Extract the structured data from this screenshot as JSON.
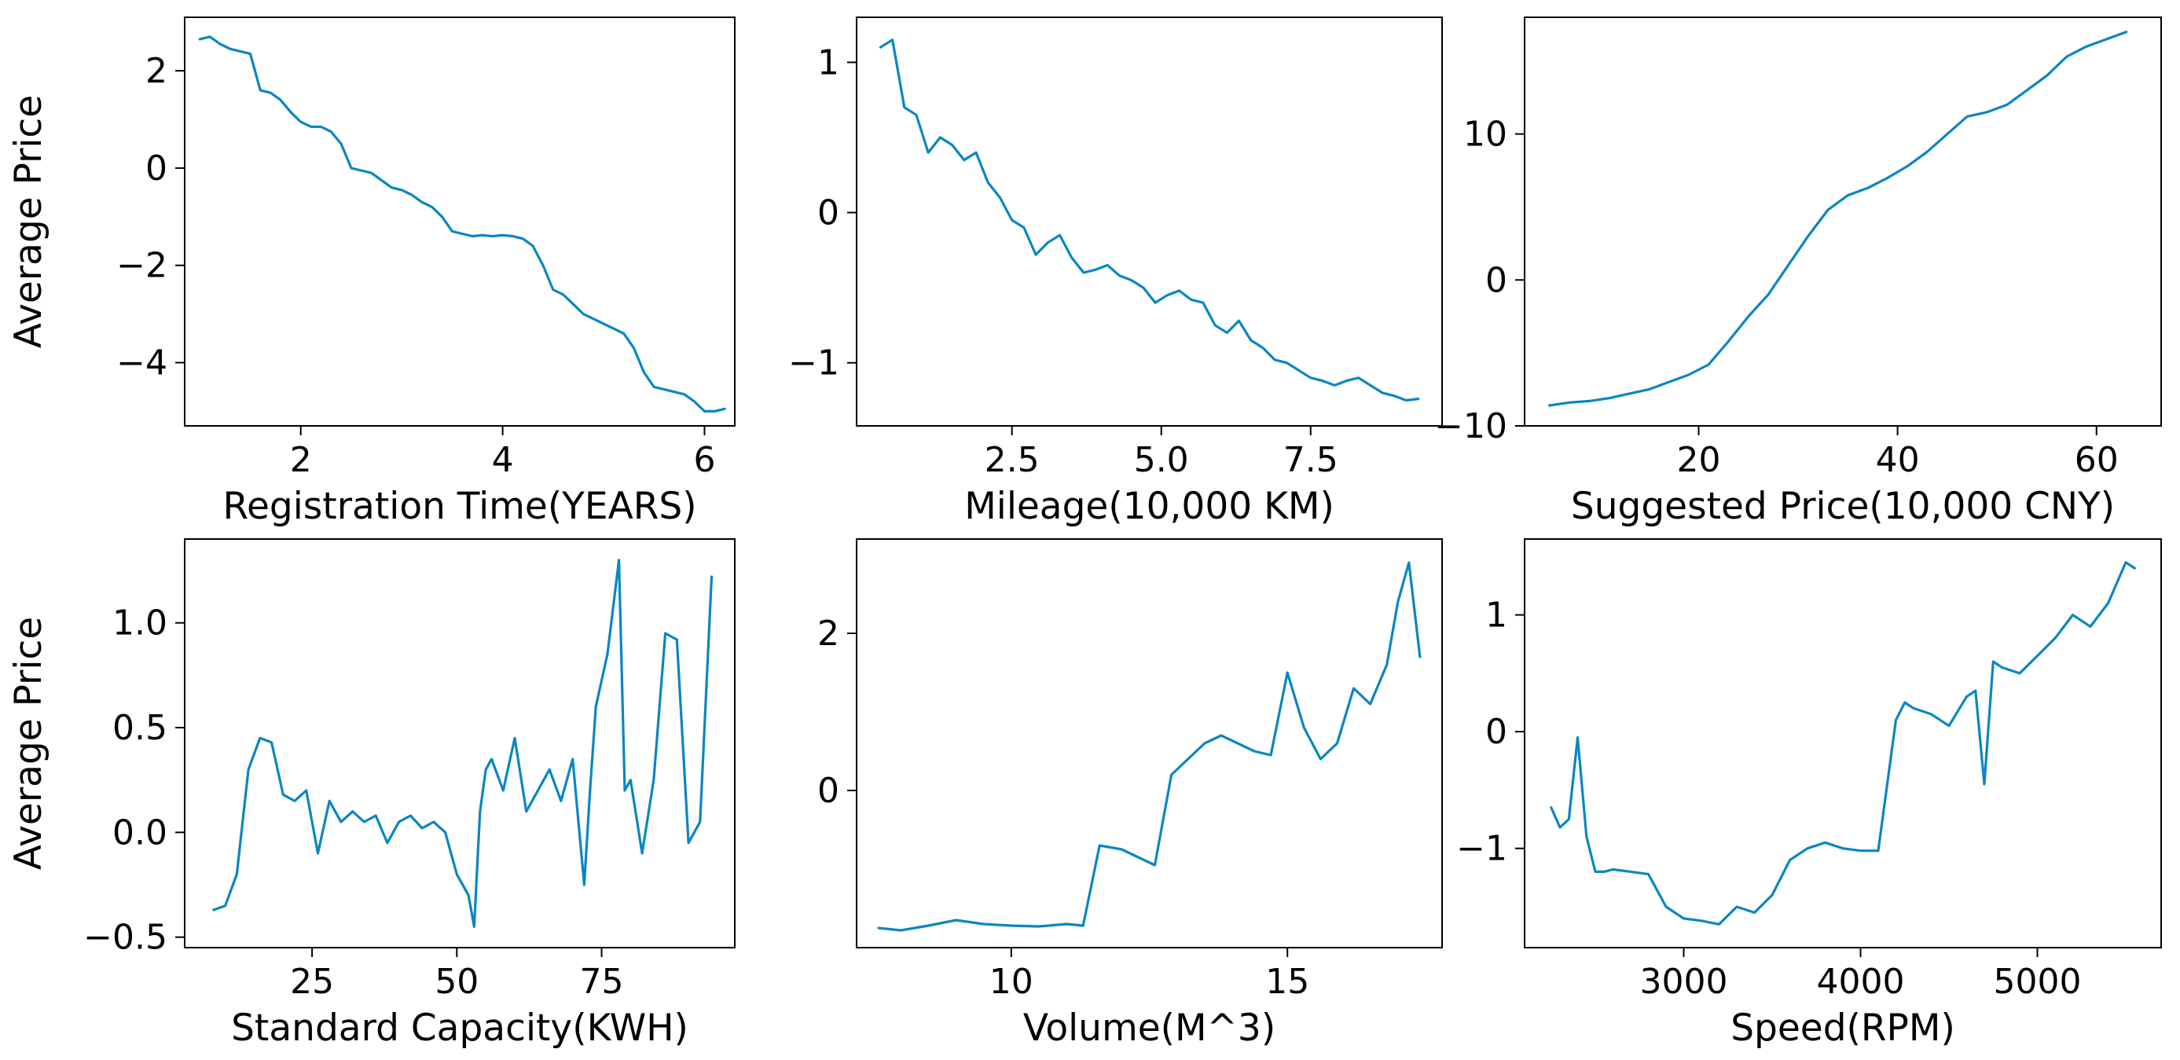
{
  "figure": {
    "line_color": "#0a86c2"
  },
  "chart_data": [
    {
      "type": "line",
      "xlabel": "Registration Time(YEARS)",
      "ylabel": "Average Price",
      "xlim": [
        0.85,
        6.3
      ],
      "ylim": [
        -5.3,
        3.1
      ],
      "xticks": [
        2,
        4,
        6
      ],
      "xtick_labels": [
        "2",
        "4",
        "6"
      ],
      "yticks": [
        2,
        0,
        -2,
        -4
      ],
      "ytick_labels": [
        "2",
        "0",
        "−2",
        "−4"
      ],
      "x": [
        1.0,
        1.1,
        1.2,
        1.3,
        1.4,
        1.5,
        1.6,
        1.7,
        1.8,
        1.9,
        2.0,
        2.1,
        2.2,
        2.3,
        2.4,
        2.5,
        2.6,
        2.7,
        2.8,
        2.9,
        3.0,
        3.1,
        3.2,
        3.3,
        3.4,
        3.5,
        3.6,
        3.7,
        3.8,
        3.9,
        4.0,
        4.1,
        4.2,
        4.3,
        4.4,
        4.5,
        4.6,
        4.7,
        4.8,
        4.9,
        5.0,
        5.1,
        5.2,
        5.3,
        5.4,
        5.5,
        5.6,
        5.7,
        5.8,
        5.9,
        6.0,
        6.1,
        6.2
      ],
      "y": [
        2.65,
        2.7,
        2.55,
        2.45,
        2.4,
        2.35,
        1.6,
        1.55,
        1.4,
        1.15,
        0.95,
        0.85,
        0.85,
        0.75,
        0.5,
        0.0,
        -0.05,
        -0.1,
        -0.25,
        -0.4,
        -0.45,
        -0.55,
        -0.7,
        -0.8,
        -1.0,
        -1.3,
        -1.35,
        -1.4,
        -1.38,
        -1.4,
        -1.38,
        -1.4,
        -1.45,
        -1.6,
        -2.0,
        -2.5,
        -2.6,
        -2.8,
        -3.0,
        -3.1,
        -3.2,
        -3.3,
        -3.4,
        -3.7,
        -4.2,
        -4.5,
        -4.55,
        -4.6,
        -4.65,
        -4.8,
        -5.0,
        -5.0,
        -4.95
      ]
    },
    {
      "type": "line",
      "xlabel": "Mileage(10,000 KM)",
      "ylabel": "",
      "xlim": [
        -0.1,
        9.7
      ],
      "ylim": [
        -1.42,
        1.3
      ],
      "xticks": [
        2.5,
        5.0,
        7.5
      ],
      "xtick_labels": [
        "2.5",
        "5.0",
        "7.5"
      ],
      "yticks": [
        1,
        0,
        -1
      ],
      "ytick_labels": [
        "1",
        "0",
        "−1"
      ],
      "x": [
        0.3,
        0.5,
        0.7,
        0.9,
        1.1,
        1.3,
        1.5,
        1.7,
        1.9,
        2.1,
        2.3,
        2.5,
        2.7,
        2.9,
        3.1,
        3.3,
        3.5,
        3.7,
        3.9,
        4.1,
        4.3,
        4.5,
        4.7,
        4.9,
        5.1,
        5.3,
        5.5,
        5.7,
        5.9,
        6.1,
        6.3,
        6.5,
        6.7,
        6.9,
        7.1,
        7.3,
        7.5,
        7.7,
        7.9,
        8.1,
        8.3,
        8.5,
        8.7,
        8.9,
        9.1,
        9.3
      ],
      "y": [
        1.1,
        1.15,
        0.7,
        0.65,
        0.4,
        0.5,
        0.45,
        0.35,
        0.4,
        0.2,
        0.1,
        -0.05,
        -0.1,
        -0.28,
        -0.2,
        -0.15,
        -0.3,
        -0.4,
        -0.38,
        -0.35,
        -0.42,
        -0.45,
        -0.5,
        -0.6,
        -0.55,
        -0.52,
        -0.58,
        -0.6,
        -0.75,
        -0.8,
        -0.72,
        -0.85,
        -0.9,
        -0.98,
        -1.0,
        -1.05,
        -1.1,
        -1.12,
        -1.15,
        -1.12,
        -1.1,
        -1.15,
        -1.2,
        -1.22,
        -1.25,
        -1.24
      ]
    },
    {
      "type": "line",
      "xlabel": "Suggested Price(10,000 CNY)",
      "ylabel": "",
      "xlim": [
        2.5,
        66.5
      ],
      "ylim": [
        -10,
        18
      ],
      "xticks": [
        20,
        40,
        60
      ],
      "xtick_labels": [
        "20",
        "40",
        "60"
      ],
      "yticks": [
        10,
        0,
        -10
      ],
      "ytick_labels": [
        "10",
        "0",
        "−10"
      ],
      "x": [
        5,
        7,
        9,
        11,
        13,
        15,
        17,
        19,
        21,
        23,
        25,
        27,
        29,
        31,
        33,
        35,
        37,
        39,
        41,
        43,
        45,
        47,
        49,
        51,
        53,
        55,
        57,
        59,
        61,
        63
      ],
      "y": [
        -8.6,
        -8.4,
        -8.3,
        -8.1,
        -7.8,
        -7.5,
        -7.0,
        -6.5,
        -5.8,
        -4.2,
        -2.5,
        -1.0,
        1.0,
        3.0,
        4.8,
        5.8,
        6.3,
        7.0,
        7.8,
        8.8,
        10.0,
        11.2,
        11.5,
        12.0,
        13.0,
        14.0,
        15.3,
        16.0,
        16.5,
        17.0
      ]
    },
    {
      "type": "line",
      "xlabel": "Standard Capacity(KWH)",
      "ylabel": "Average Price",
      "xlim": [
        3,
        98
      ],
      "ylim": [
        -0.55,
        1.4
      ],
      "xticks": [
        25,
        50,
        75
      ],
      "xtick_labels": [
        "25",
        "50",
        "75"
      ],
      "yticks": [
        1.0,
        0.5,
        0.0,
        -0.5
      ],
      "ytick_labels": [
        "1.0",
        "0.5",
        "0.0",
        "−0.5"
      ],
      "x": [
        8,
        10,
        12,
        14,
        16,
        18,
        20,
        22,
        24,
        26,
        28,
        30,
        32,
        34,
        36,
        38,
        40,
        42,
        44,
        46,
        48,
        50,
        52,
        53,
        54,
        55,
        56,
        58,
        60,
        62,
        64,
        66,
        68,
        70,
        72,
        73,
        74,
        76,
        78,
        79,
        80,
        82,
        84,
        86,
        88,
        90,
        92,
        94
      ],
      "y": [
        -0.37,
        -0.35,
        -0.2,
        0.3,
        0.45,
        0.43,
        0.18,
        0.15,
        0.2,
        -0.1,
        0.15,
        0.05,
        0.1,
        0.05,
        0.08,
        -0.05,
        0.05,
        0.08,
        0.02,
        0.05,
        0.0,
        -0.2,
        -0.3,
        -0.45,
        0.1,
        0.3,
        0.35,
        0.2,
        0.45,
        0.1,
        0.2,
        0.3,
        0.15,
        0.35,
        -0.25,
        0.2,
        0.6,
        0.85,
        1.3,
        0.2,
        0.25,
        -0.1,
        0.25,
        0.95,
        0.92,
        -0.05,
        0.05,
        1.22
      ]
    },
    {
      "type": "line",
      "xlabel": "Volume(M^3)",
      "ylabel": "",
      "xlim": [
        7.2,
        17.8
      ],
      "ylim": [
        -2.0,
        3.2
      ],
      "xticks": [
        10,
        15
      ],
      "xtick_labels": [
        "10",
        "15"
      ],
      "yticks": [
        2,
        0
      ],
      "ytick_labels": [
        "2",
        "0"
      ],
      "x": [
        7.6,
        8.0,
        8.5,
        9.0,
        9.5,
        10.0,
        10.5,
        11.0,
        11.3,
        11.6,
        12.0,
        12.3,
        12.6,
        12.9,
        13.2,
        13.5,
        13.8,
        14.1,
        14.4,
        14.7,
        15.0,
        15.3,
        15.6,
        15.9,
        16.2,
        16.5,
        16.8,
        17.0,
        17.2,
        17.4
      ],
      "y": [
        -1.75,
        -1.78,
        -1.72,
        -1.65,
        -1.7,
        -1.72,
        -1.73,
        -1.7,
        -1.72,
        -0.7,
        -0.75,
        -0.85,
        -0.95,
        0.2,
        0.4,
        0.6,
        0.7,
        0.6,
        0.5,
        0.45,
        1.5,
        0.8,
        0.4,
        0.6,
        1.3,
        1.1,
        1.6,
        2.4,
        2.9,
        1.7
      ]
    },
    {
      "type": "line",
      "xlabel": "Speed(RPM)",
      "ylabel": "",
      "xlim": [
        2100,
        5700
      ],
      "ylim": [
        -1.85,
        1.65
      ],
      "xticks": [
        3000,
        4000,
        5000
      ],
      "xtick_labels": [
        "3000",
        "4000",
        "5000"
      ],
      "yticks": [
        1,
        0,
        -1
      ],
      "ytick_labels": [
        "1",
        "0",
        "−1"
      ],
      "x": [
        2250,
        2300,
        2350,
        2400,
        2450,
        2500,
        2550,
        2600,
        2700,
        2800,
        2900,
        3000,
        3100,
        3200,
        3300,
        3400,
        3500,
        3600,
        3700,
        3800,
        3900,
        4000,
        4100,
        4200,
        4250,
        4300,
        4400,
        4500,
        4600,
        4650,
        4700,
        4750,
        4800,
        4900,
        5000,
        5100,
        5200,
        5300,
        5400,
        5500,
        5550
      ],
      "y": [
        -0.65,
        -0.82,
        -0.75,
        -0.05,
        -0.9,
        -1.2,
        -1.2,
        -1.18,
        -1.2,
        -1.22,
        -1.5,
        -1.6,
        -1.62,
        -1.65,
        -1.5,
        -1.55,
        -1.4,
        -1.1,
        -1.0,
        -0.95,
        -1.0,
        -1.02,
        -1.02,
        0.1,
        0.25,
        0.2,
        0.15,
        0.05,
        0.3,
        0.35,
        -0.45,
        0.6,
        0.55,
        0.5,
        0.65,
        0.8,
        1.0,
        0.9,
        1.1,
        1.45,
        1.4
      ]
    }
  ]
}
